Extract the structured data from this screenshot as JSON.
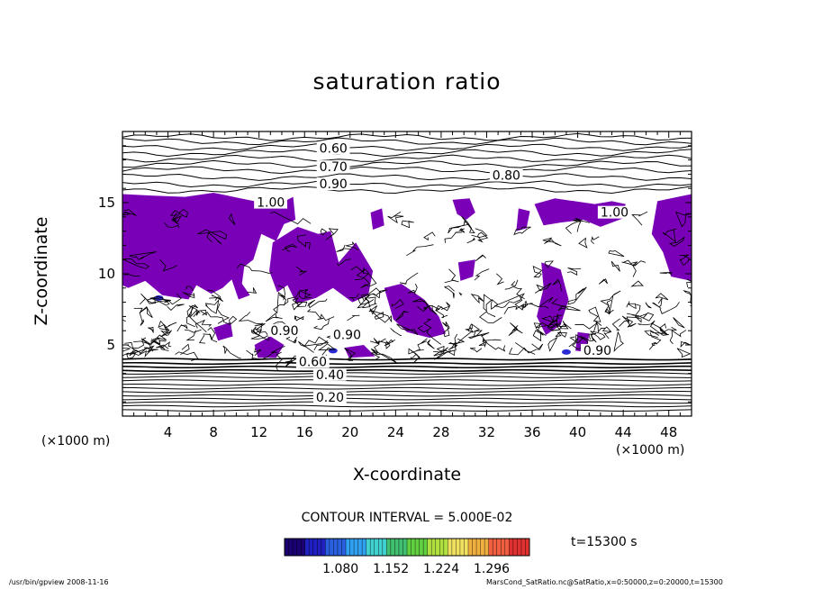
{
  "title": "saturation ratio",
  "chart_data": {
    "type": "contour",
    "title": "saturation ratio",
    "xlabel": "X-coordinate",
    "ylabel": "Z-coordinate",
    "x_unit": "(×1000 m)",
    "y_unit": "(×1000 m)",
    "xlim": [
      0,
      50
    ],
    "ylim": [
      0,
      20
    ],
    "x_ticks": [
      "4",
      "8",
      "12",
      "16",
      "20",
      "24",
      "28",
      "32",
      "36",
      "40",
      "44",
      "48"
    ],
    "y_ticks": [
      "5",
      "10",
      "15"
    ],
    "contour_labels": [
      {
        "text": "0.60",
        "x": 17.3,
        "z": 18.7
      },
      {
        "text": "0.70",
        "x": 17.3,
        "z": 17.4
      },
      {
        "text": "0.80",
        "x": 32.5,
        "z": 16.8
      },
      {
        "text": "0.90",
        "x": 17.3,
        "z": 16.2
      },
      {
        "text": "1.00",
        "x": 11.8,
        "z": 14.9
      },
      {
        "text": "1.00",
        "x": 42.0,
        "z": 14.2
      },
      {
        "text": "0.90",
        "x": 13.0,
        "z": 5.9
      },
      {
        "text": "0.90",
        "x": 18.5,
        "z": 5.6
      },
      {
        "text": "0.90",
        "x": 40.5,
        "z": 4.5
      },
      {
        "text": "0.60",
        "x": 15.5,
        "z": 3.7
      },
      {
        "text": "0.40",
        "x": 17.0,
        "z": 2.8
      },
      {
        "text": "0.20",
        "x": 17.0,
        "z": 1.2
      }
    ],
    "contour_interval": "CONTOUR INTERVAL = 5.000E-02",
    "fill_threshold": 1.0,
    "fill_color": "#7a00b8",
    "colorbar": {
      "ticks": [
        "1.080",
        "1.152",
        "1.224",
        "1.296"
      ],
      "range": [
        1.0,
        1.35
      ]
    },
    "time": "t=15300 s"
  },
  "footer": {
    "left": "/usr/bin/gpview   2008-11-16",
    "right": "MarsCond_SatRatio.nc@SatRatio,x=0:50000,z=0:20000,t=15300"
  }
}
